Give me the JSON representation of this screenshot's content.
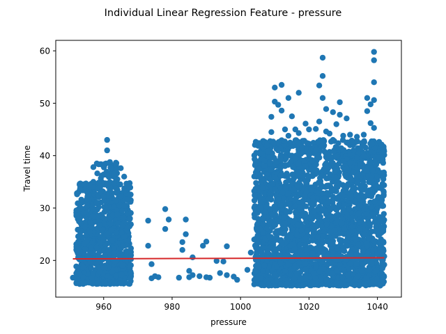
{
  "chart_data": {
    "type": "scatter",
    "title": "Individual Linear Regression Feature - pressure",
    "xlabel": "pressure",
    "ylabel": "Travel time",
    "xlim": [
      946,
      1047
    ],
    "ylim": [
      13,
      62
    ],
    "xticks": [
      960,
      980,
      1000,
      1020,
      1040
    ],
    "yticks": [
      20,
      30,
      40,
      50,
      60
    ],
    "grid": false,
    "point_color": "#1f77b4",
    "line_color": "#d62728",
    "regression_line": {
      "x": [
        951,
        1042
      ],
      "y": [
        20.3,
        20.5
      ]
    },
    "clusters": [
      {
        "x_range": [
          952,
          968
        ],
        "y_min": 15.5,
        "y_max": 43
      },
      {
        "x_range": [
          1004,
          1042
        ],
        "y_min": 15.2,
        "y_max": 60
      }
    ],
    "series": [
      {
        "values": [
          [
            951,
            16.7
          ],
          [
            952,
            16.5
          ],
          [
            953,
            20.5
          ],
          [
            953,
            17.4
          ],
          [
            954,
            18.7
          ],
          [
            954,
            16.8
          ],
          [
            955,
            23.6
          ],
          [
            955,
            33.2
          ],
          [
            955,
            30.2
          ],
          [
            956,
            25.4
          ],
          [
            956,
            19.7
          ],
          [
            957,
            37.8
          ],
          [
            957,
            35.0
          ],
          [
            957,
            28.4
          ],
          [
            958,
            38.5
          ],
          [
            958,
            31.0
          ],
          [
            958,
            22.5
          ],
          [
            959,
            34.1
          ],
          [
            959,
            26.7
          ],
          [
            960,
            37.9
          ],
          [
            960,
            32.2
          ],
          [
            960,
            24.0
          ],
          [
            961,
            43.0
          ],
          [
            961,
            41.0
          ],
          [
            961,
            36.3
          ],
          [
            961,
            29.6
          ],
          [
            962,
            37.7
          ],
          [
            962,
            33.7
          ],
          [
            962,
            27.0
          ],
          [
            963,
            36.5
          ],
          [
            963,
            30.3
          ],
          [
            963,
            22.3
          ],
          [
            964,
            35.5
          ],
          [
            964,
            28.8
          ],
          [
            965,
            37.6
          ],
          [
            965,
            32.2
          ],
          [
            966,
            36.0
          ],
          [
            966,
            24.5
          ],
          [
            967,
            31.7
          ],
          [
            967,
            26.2
          ],
          [
            968,
            21.0
          ],
          [
            968,
            17.5
          ],
          [
            973,
            27.6
          ],
          [
            973,
            22.8
          ],
          [
            974,
            19.3
          ],
          [
            974,
            16.6
          ],
          [
            975,
            17.0
          ],
          [
            976,
            16.8
          ],
          [
            978,
            29.8
          ],
          [
            978,
            26.0
          ],
          [
            979,
            27.8
          ],
          [
            982,
            16.7
          ],
          [
            983,
            23.5
          ],
          [
            983,
            22.0
          ],
          [
            984,
            27.8
          ],
          [
            984,
            25.0
          ],
          [
            985,
            18.0
          ],
          [
            985,
            16.8
          ],
          [
            986,
            17.2
          ],
          [
            986,
            20.6
          ],
          [
            988,
            17.0
          ],
          [
            989,
            22.8
          ],
          [
            990,
            23.6
          ],
          [
            990,
            16.8
          ],
          [
            991,
            16.7
          ],
          [
            993,
            19.9
          ],
          [
            994,
            17.6
          ],
          [
            995,
            19.8
          ],
          [
            996,
            22.7
          ],
          [
            996,
            17.2
          ],
          [
            998,
            16.9
          ],
          [
            999,
            16.3
          ],
          [
            1002,
            18.2
          ],
          [
            1003,
            21.5
          ],
          [
            1004,
            24.0
          ],
          [
            1005,
            27.0
          ],
          [
            1006,
            30.0
          ],
          [
            1006,
            35.0
          ],
          [
            1007,
            38.0
          ],
          [
            1008,
            40.8
          ],
          [
            1009,
            47.4
          ],
          [
            1009,
            44.5
          ],
          [
            1010,
            53.0
          ],
          [
            1010,
            50.3
          ],
          [
            1011,
            49.7
          ],
          [
            1011,
            41.0
          ],
          [
            1012,
            53.5
          ],
          [
            1012,
            48.6
          ],
          [
            1013,
            45.0
          ],
          [
            1013,
            38.0
          ],
          [
            1014,
            51.0
          ],
          [
            1014,
            43.8
          ],
          [
            1015,
            47.5
          ],
          [
            1015,
            40.0
          ],
          [
            1016,
            45.0
          ],
          [
            1016,
            39.5
          ],
          [
            1017,
            52.0
          ],
          [
            1017,
            44.3
          ],
          [
            1018,
            41.5
          ],
          [
            1019,
            46.1
          ],
          [
            1019,
            38.0
          ],
          [
            1020,
            45.0
          ],
          [
            1020,
            40.2
          ],
          [
            1021,
            39.0
          ],
          [
            1022,
            45.1
          ],
          [
            1022,
            41.0
          ],
          [
            1023,
            53.4
          ],
          [
            1023,
            46.5
          ],
          [
            1024,
            58.7
          ],
          [
            1024,
            55.2
          ],
          [
            1024,
            51.0
          ],
          [
            1025,
            48.9
          ],
          [
            1025,
            44.6
          ],
          [
            1026,
            44.2
          ],
          [
            1026,
            40.0
          ],
          [
            1027,
            48.3
          ],
          [
            1027,
            43.0
          ],
          [
            1028,
            46.0
          ],
          [
            1028,
            41.5
          ],
          [
            1029,
            50.2
          ],
          [
            1029,
            47.8
          ],
          [
            1030,
            43.8
          ],
          [
            1030,
            39.0
          ],
          [
            1031,
            47.1
          ],
          [
            1031,
            42.5
          ],
          [
            1032,
            44.0
          ],
          [
            1032,
            38.6
          ],
          [
            1033,
            41.0
          ],
          [
            1034,
            43.6
          ],
          [
            1034,
            39.6
          ],
          [
            1035,
            41.4
          ],
          [
            1036,
            44.0
          ],
          [
            1036,
            40.0
          ],
          [
            1037,
            51.0
          ],
          [
            1037,
            48.5
          ],
          [
            1038,
            49.8
          ],
          [
            1038,
            46.2
          ],
          [
            1039,
            59.8
          ],
          [
            1039,
            58.2
          ],
          [
            1039,
            54.0
          ],
          [
            1039,
            50.6
          ],
          [
            1039,
            45.3
          ],
          [
            1040,
            36.0
          ],
          [
            1040,
            30.0
          ],
          [
            1041,
            27.5
          ],
          [
            1041,
            22.0
          ],
          [
            1042,
            20.8
          ],
          [
            1042,
            19.2
          ]
        ]
      }
    ]
  }
}
